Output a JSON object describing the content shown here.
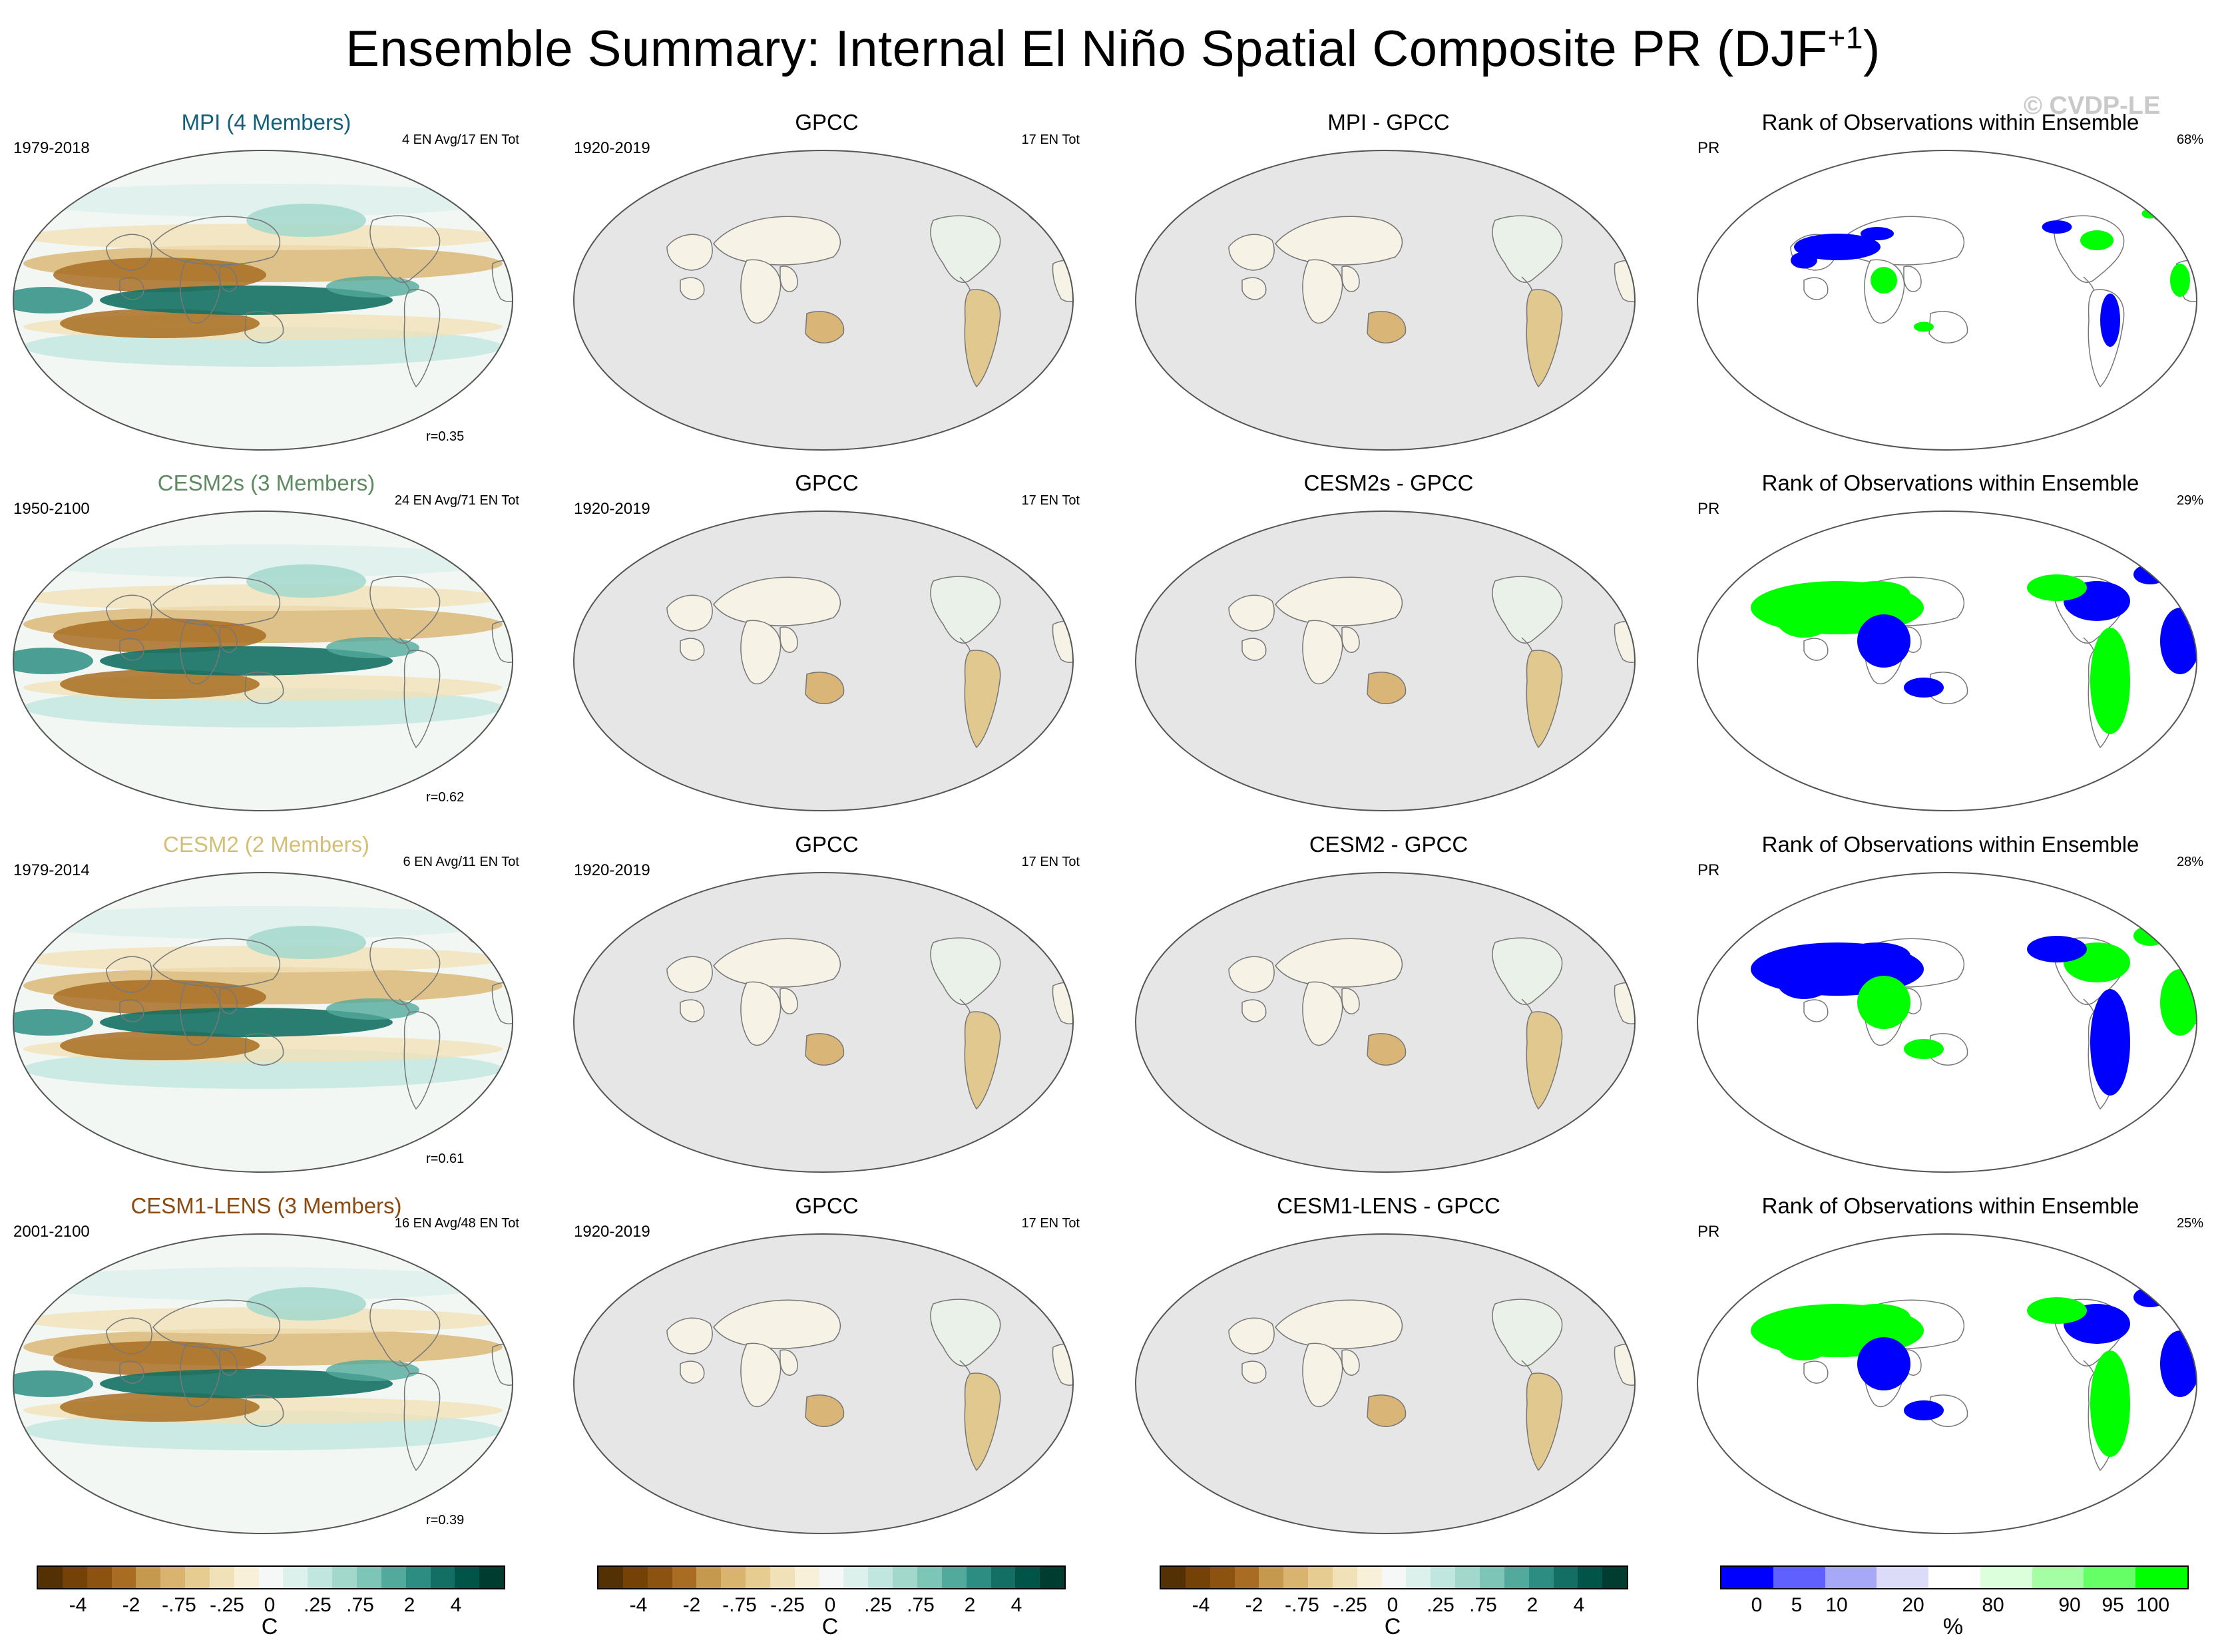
{
  "title": {
    "main": "Ensemble Summary: Internal El Niño Spatial Composite PR (DJF",
    "superscript": "+1",
    "close": ")"
  },
  "credit": "© CVDP-LE",
  "rows": [
    {
      "model": {
        "title": "MPI (4 Members)",
        "color": "#13607a",
        "years": "1979-2018",
        "count": "4 EN Avg/17 EN Tot",
        "corr": "r=0.35"
      },
      "obs": {
        "title": "GPCC",
        "years": "1920-2019",
        "count": "17 EN Tot"
      },
      "diff": {
        "title": "MPI - GPCC"
      },
      "rank": {
        "title": "Rank of Observations within Ensemble",
        "var": "PR",
        "pct": "68%"
      }
    },
    {
      "model": {
        "title": "CESM2s (3 Members)",
        "color": "#5e8a62",
        "years": "1950-2100",
        "count": "24 EN Avg/71 EN Tot",
        "corr": "r=0.62"
      },
      "obs": {
        "title": "GPCC",
        "years": "1920-2019",
        "count": "17 EN Tot"
      },
      "diff": {
        "title": "CESM2s - GPCC"
      },
      "rank": {
        "title": "Rank of Observations within Ensemble",
        "var": "PR",
        "pct": "29%"
      }
    },
    {
      "model": {
        "title": "CESM2 (2 Members)",
        "color": "#d4c074",
        "years": "1979-2014",
        "count": "6 EN Avg/11 EN Tot",
        "corr": "r=0.61"
      },
      "obs": {
        "title": "GPCC",
        "years": "1920-2019",
        "count": "17 EN Tot"
      },
      "diff": {
        "title": "CESM2 - GPCC"
      },
      "rank": {
        "title": "Rank of Observations within Ensemble",
        "var": "PR",
        "pct": "28%"
      }
    },
    {
      "model": {
        "title": "CESM1-LENS (3 Members)",
        "color": "#8a4a10",
        "years": "2001-2100",
        "count": "16 EN Avg/48 EN Tot",
        "corr": "r=0.39"
      },
      "obs": {
        "title": "GPCC",
        "years": "1920-2019",
        "count": "17 EN Tot"
      },
      "diff": {
        "title": "CESM1-LENS - GPCC"
      },
      "rank": {
        "title": "Rank of Observations within Ensemble",
        "var": "PR",
        "pct": "25%"
      }
    }
  ],
  "colorbar_brbg": {
    "colors": [
      "#543005",
      "#744106",
      "#8c5310",
      "#a86d22",
      "#c59a4f",
      "#d8b46f",
      "#e6cc91",
      "#f1e1b8",
      "#f8f0d8",
      "#f5f8f6",
      "#dcf0ec",
      "#c1e6df",
      "#a2d8cc",
      "#7cc5b7",
      "#52aa9c",
      "#2c8e82",
      "#136f63",
      "#005548",
      "#003c30"
    ],
    "ticks": [
      "-4",
      "-2",
      "-.75",
      "-.25",
      "0",
      ".25",
      ".75",
      "2",
      "4"
    ],
    "unit": "C"
  },
  "colorbar_rank": {
    "colors": [
      "#0000ff",
      "#6060ff",
      "#a8a8f8",
      "#dcdcf8",
      "#ffffff",
      "#dcffdc",
      "#a4ffa4",
      "#66ff66",
      "#00ff00"
    ],
    "ticks": [
      "0",
      "5",
      "10",
      "20",
      "80",
      "90",
      "95",
      "100"
    ],
    "unit": "%"
  }
}
